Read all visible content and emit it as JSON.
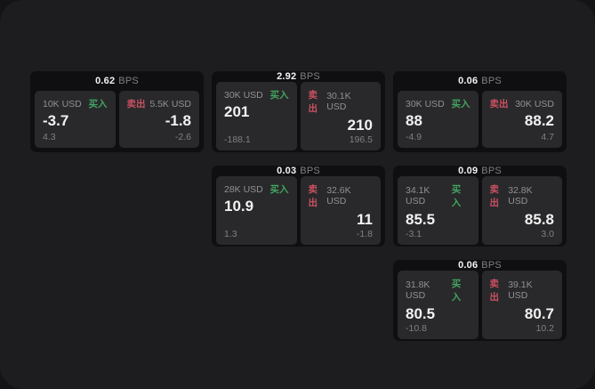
{
  "theme": {
    "outer_bg": "#141416",
    "panel_bg": "#1d1d1f",
    "card_bg": "#0f0f11",
    "tile_bg": "#29292b",
    "buy_color": "#43a35f",
    "sell_color": "#ca5160",
    "text_primary": "#f2f2f2",
    "text_secondary": "#919195"
  },
  "labels": {
    "bps": "BPS",
    "buy": "买入",
    "sell": "卖出"
  },
  "cards": [
    {
      "bps": "0.62",
      "grid": {
        "col": 1,
        "row": 1
      },
      "buy": {
        "amount": "10K USD",
        "value": "-3.7",
        "delta": "4.3"
      },
      "sell": {
        "amount": "5.5K USD",
        "value": "-1.8",
        "delta": "-2.6"
      }
    },
    {
      "bps": "2.92",
      "grid": {
        "col": 2,
        "row": 1
      },
      "buy": {
        "amount": "30K USD",
        "value": "201",
        "delta": "-188.1"
      },
      "sell": {
        "amount": "30.1K USD",
        "value": "210",
        "delta": "196.5"
      }
    },
    {
      "bps": "0.06",
      "grid": {
        "col": 3,
        "row": 1
      },
      "buy": {
        "amount": "30K USD",
        "value": "88",
        "delta": "-4.9"
      },
      "sell": {
        "amount": "30K USD",
        "value": "88.2",
        "delta": "4.7"
      }
    },
    {
      "bps": "0.03",
      "grid": {
        "col": 2,
        "row": 2
      },
      "buy": {
        "amount": "28K USD",
        "value": "10.9",
        "delta": "1.3"
      },
      "sell": {
        "amount": "32.6K USD",
        "value": "11",
        "delta": "-1.8"
      }
    },
    {
      "bps": "0.09",
      "grid": {
        "col": 3,
        "row": 2
      },
      "buy": {
        "amount": "34.1K USD",
        "value": "85.5",
        "delta": "-3.1"
      },
      "sell": {
        "amount": "32.8K USD",
        "value": "85.8",
        "delta": "3.0"
      }
    },
    {
      "bps": "0.06",
      "grid": {
        "col": 3,
        "row": 3
      },
      "buy": {
        "amount": "31.8K USD",
        "value": "80.5",
        "delta": "-10.8"
      },
      "sell": {
        "amount": "39.1K USD",
        "value": "80.7",
        "delta": "10.2"
      }
    }
  ]
}
